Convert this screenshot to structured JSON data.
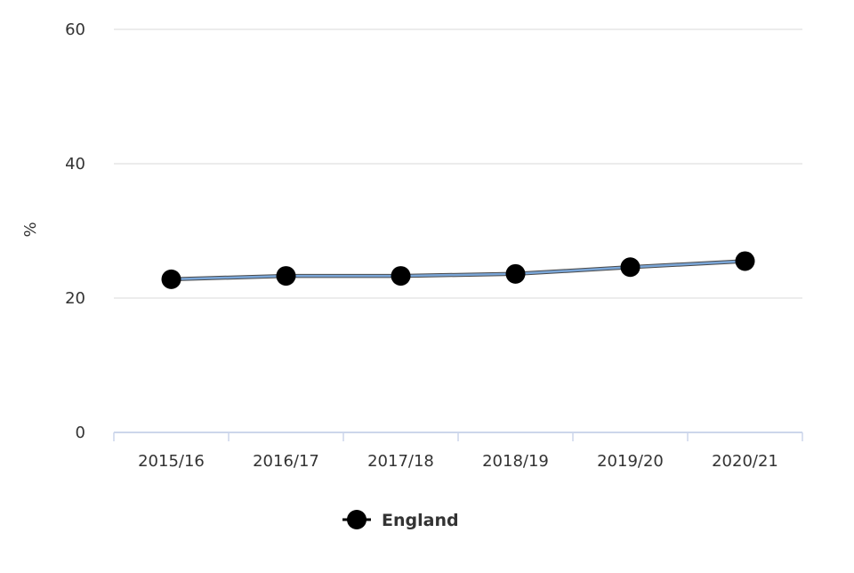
{
  "chart_data": {
    "type": "line",
    "title": "",
    "xlabel": "",
    "ylabel": "%",
    "categories": [
      "2015/16",
      "2016/17",
      "2017/18",
      "2018/19",
      "2019/20",
      "2020/21"
    ],
    "ylim": [
      0,
      60
    ],
    "yticks": [
      0,
      20,
      40,
      60
    ],
    "grid": true,
    "legend_position": "bottom-center",
    "series": [
      {
        "name": "England",
        "values": [
          22.8,
          23.3,
          23.3,
          23.6,
          24.6,
          25.5
        ],
        "line_color": "#7aa6d8",
        "marker_color": "#000000"
      }
    ]
  }
}
